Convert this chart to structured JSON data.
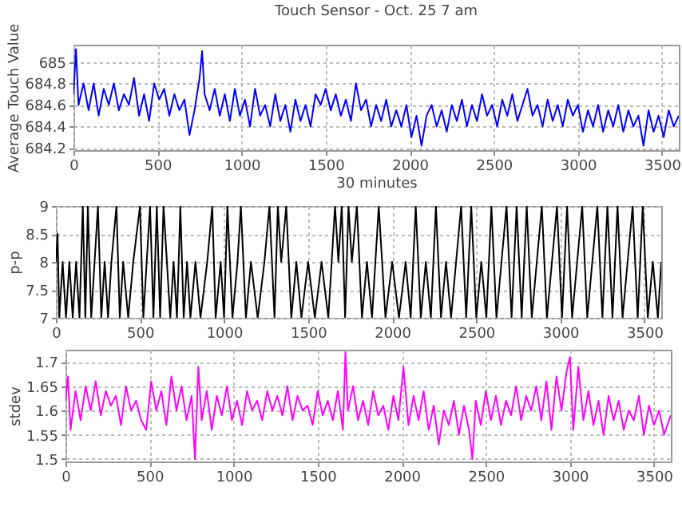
{
  "chart_data": [
    {
      "type": "line",
      "title": "Touch Sensor - Oct. 25 7 am",
      "xlabel": "30 minutes",
      "ylabel": "Average Touch Value",
      "xlim": [
        0,
        3600
      ],
      "xticks": [
        0,
        500,
        1000,
        1500,
        2000,
        2500,
        3000,
        3500
      ],
      "ylim": [
        684.18,
        685.16
      ],
      "yticks": [
        684.2,
        684.4,
        684.6,
        684.8,
        685
      ],
      "grid": true,
      "series": [
        {
          "color": "#0000ff",
          "x": [
            0,
            15,
            30,
            60,
            90,
            120,
            150,
            180,
            210,
            240,
            270,
            300,
            330,
            360,
            390,
            420,
            450,
            480,
            510,
            540,
            570,
            600,
            630,
            660,
            690,
            720,
            750,
            765,
            780,
            810,
            840,
            870,
            900,
            930,
            960,
            990,
            1020,
            1050,
            1080,
            1110,
            1140,
            1170,
            1200,
            1230,
            1260,
            1290,
            1320,
            1350,
            1380,
            1410,
            1440,
            1470,
            1500,
            1530,
            1560,
            1590,
            1620,
            1650,
            1680,
            1710,
            1740,
            1770,
            1800,
            1830,
            1860,
            1890,
            1920,
            1950,
            1980,
            2010,
            2040,
            2070,
            2100,
            2130,
            2160,
            2190,
            2220,
            2250,
            2280,
            2310,
            2340,
            2370,
            2400,
            2430,
            2460,
            2490,
            2520,
            2550,
            2580,
            2610,
            2640,
            2670,
            2700,
            2730,
            2760,
            2790,
            2820,
            2850,
            2880,
            2910,
            2940,
            2970,
            3000,
            3030,
            3060,
            3090,
            3120,
            3150,
            3180,
            3210,
            3240,
            3270,
            3300,
            3330,
            3360,
            3390,
            3420,
            3450,
            3480,
            3510,
            3540,
            3570,
            3600
          ],
          "values": [
            684.7,
            685.12,
            684.6,
            684.8,
            684.55,
            684.8,
            684.5,
            684.75,
            684.6,
            684.8,
            684.55,
            684.7,
            684.6,
            684.85,
            684.5,
            684.7,
            684.45,
            684.8,
            684.65,
            684.75,
            684.5,
            684.7,
            684.55,
            684.65,
            684.32,
            684.55,
            684.85,
            685.1,
            684.7,
            684.55,
            684.75,
            684.5,
            684.7,
            684.45,
            684.75,
            684.5,
            684.65,
            684.4,
            684.75,
            684.5,
            684.6,
            684.4,
            684.7,
            684.45,
            684.6,
            684.35,
            684.65,
            684.45,
            684.6,
            684.4,
            684.7,
            684.6,
            684.75,
            684.55,
            684.7,
            684.5,
            684.65,
            684.45,
            684.8,
            684.55,
            684.65,
            684.4,
            684.6,
            684.45,
            684.65,
            684.4,
            684.55,
            684.4,
            684.6,
            684.3,
            684.5,
            684.22,
            684.5,
            684.6,
            684.4,
            684.55,
            684.35,
            684.6,
            684.45,
            684.65,
            684.4,
            684.6,
            684.45,
            684.7,
            684.5,
            684.6,
            684.4,
            684.65,
            684.5,
            684.7,
            684.45,
            684.6,
            684.75,
            684.5,
            684.6,
            684.4,
            684.65,
            684.45,
            684.6,
            684.4,
            684.65,
            684.5,
            684.6,
            684.35,
            684.55,
            684.4,
            684.6,
            684.35,
            684.55,
            684.4,
            684.6,
            684.35,
            684.55,
            684.4,
            684.5,
            684.22,
            684.55,
            684.35,
            684.5,
            684.3,
            684.55,
            684.4,
            684.5
          ]
        }
      ]
    },
    {
      "type": "line",
      "ylabel": "p-p",
      "xlim": [
        0,
        3600
      ],
      "xticks": [
        0,
        500,
        1000,
        1500,
        2000,
        2500,
        3000,
        3500
      ],
      "ylim": [
        7,
        9
      ],
      "yticks": [
        7,
        7.5,
        8,
        8.5,
        9
      ],
      "grid": true,
      "series": [
        {
          "color": "#000000",
          "x": [
            0,
            10,
            20,
            40,
            60,
            80,
            100,
            120,
            140,
            160,
            175,
            190,
            210,
            230,
            250,
            270,
            290,
            310,
            330,
            360,
            380,
            400,
            430,
            460,
            500,
            520,
            540,
            560,
            580,
            600,
            620,
            640,
            660,
            680,
            700,
            720,
            740,
            760,
            780,
            800,
            830,
            860,
            900,
            930,
            950,
            980,
            1000,
            1020,
            1050,
            1080,
            1100,
            1130,
            1160,
            1200,
            1240,
            1270,
            1300,
            1320,
            1340,
            1370,
            1400,
            1430,
            1460,
            1500,
            1540,
            1580,
            1620,
            1660,
            1680,
            1700,
            1720,
            1740,
            1760,
            1790,
            1820,
            1850,
            1880,
            1920,
            1960,
            2000,
            2040,
            2080,
            2110,
            2140,
            2170,
            2200,
            2230,
            2260,
            2290,
            2320,
            2350,
            2380,
            2410,
            2440,
            2470,
            2500,
            2530,
            2560,
            2590,
            2620,
            2650,
            2680,
            2710,
            2740,
            2770,
            2800,
            2830,
            2860,
            2890,
            2920,
            2950,
            2980,
            3010,
            3040,
            3070,
            3100,
            3130,
            3160,
            3190,
            3220,
            3250,
            3280,
            3310,
            3340,
            3370,
            3400,
            3430,
            3460,
            3490,
            3520,
            3550,
            3580,
            3600
          ],
          "values": [
            8,
            8.5,
            7,
            8,
            7,
            8,
            7,
            8,
            7,
            9,
            7,
            9,
            7,
            8,
            9,
            7,
            8,
            7,
            8,
            9,
            7,
            8,
            7,
            8,
            9,
            7,
            8,
            9,
            7,
            9,
            7,
            9,
            8,
            7,
            8,
            7,
            9,
            7,
            8,
            7,
            8,
            7,
            8,
            9,
            7,
            8,
            7,
            9,
            7,
            8,
            9,
            7,
            8,
            7,
            8,
            9,
            7,
            9,
            8,
            9,
            7,
            8,
            7,
            8,
            7,
            8,
            7,
            9,
            8,
            9,
            7,
            9,
            8,
            9,
            7,
            8,
            7,
            9,
            7,
            8,
            7,
            8,
            7,
            9,
            7,
            8,
            7,
            9,
            7,
            8,
            7,
            8,
            9,
            7,
            9,
            7,
            8,
            7,
            9,
            7,
            8,
            9,
            7,
            9,
            7,
            9,
            7,
            8,
            9,
            7,
            8,
            9,
            7,
            9,
            7,
            8,
            9,
            7,
            8,
            9,
            7,
            9,
            7,
            9,
            7,
            8,
            9,
            7,
            9,
            7,
            8,
            7,
            8
          ]
        }
      ]
    },
    {
      "type": "line",
      "ylabel": "stdev",
      "xlim": [
        0,
        3600
      ],
      "xticks": [
        0,
        500,
        1000,
        1500,
        2000,
        2500,
        3000,
        3500
      ],
      "ylim": [
        1.495,
        1.725
      ],
      "yticks": [
        1.5,
        1.55,
        1.6,
        1.65,
        1.7
      ],
      "grid": true,
      "series": [
        {
          "color": "#ff00ff",
          "x": [
            0,
            15,
            30,
            60,
            90,
            120,
            150,
            180,
            210,
            240,
            270,
            300,
            330,
            360,
            390,
            420,
            450,
            480,
            510,
            540,
            570,
            600,
            630,
            660,
            690,
            720,
            750,
            770,
            790,
            810,
            840,
            870,
            900,
            930,
            960,
            990,
            1020,
            1050,
            1080,
            1110,
            1140,
            1170,
            1200,
            1230,
            1260,
            1290,
            1320,
            1350,
            1380,
            1410,
            1440,
            1470,
            1500,
            1530,
            1560,
            1590,
            1620,
            1650,
            1665,
            1680,
            1710,
            1740,
            1770,
            1800,
            1830,
            1860,
            1890,
            1920,
            1950,
            1980,
            2010,
            2040,
            2070,
            2100,
            2130,
            2160,
            2190,
            2220,
            2250,
            2280,
            2310,
            2340,
            2370,
            2400,
            2420,
            2440,
            2470,
            2500,
            2530,
            2560,
            2590,
            2620,
            2650,
            2680,
            2710,
            2740,
            2770,
            2800,
            2830,
            2860,
            2890,
            2920,
            2950,
            2980,
            3000,
            3020,
            3050,
            3080,
            3110,
            3140,
            3170,
            3200,
            3230,
            3260,
            3290,
            3320,
            3350,
            3380,
            3410,
            3440,
            3470,
            3500,
            3530,
            3560,
            3600
          ],
          "values": [
            1.62,
            1.67,
            1.56,
            1.64,
            1.58,
            1.65,
            1.6,
            1.66,
            1.59,
            1.64,
            1.61,
            1.63,
            1.57,
            1.65,
            1.6,
            1.62,
            1.58,
            1.56,
            1.66,
            1.6,
            1.64,
            1.57,
            1.67,
            1.6,
            1.65,
            1.58,
            1.63,
            1.5,
            1.69,
            1.58,
            1.64,
            1.56,
            1.63,
            1.59,
            1.65,
            1.58,
            1.62,
            1.57,
            1.64,
            1.6,
            1.62,
            1.58,
            1.64,
            1.6,
            1.63,
            1.59,
            1.65,
            1.58,
            1.63,
            1.6,
            1.61,
            1.57,
            1.64,
            1.59,
            1.62,
            1.58,
            1.64,
            1.56,
            1.72,
            1.6,
            1.65,
            1.58,
            1.62,
            1.57,
            1.64,
            1.59,
            1.61,
            1.56,
            1.63,
            1.58,
            1.69,
            1.57,
            1.63,
            1.58,
            1.64,
            1.56,
            1.61,
            1.53,
            1.6,
            1.57,
            1.62,
            1.55,
            1.61,
            1.56,
            1.5,
            1.62,
            1.57,
            1.64,
            1.58,
            1.63,
            1.57,
            1.62,
            1.59,
            1.65,
            1.58,
            1.63,
            1.6,
            1.65,
            1.58,
            1.66,
            1.56,
            1.67,
            1.6,
            1.68,
            1.71,
            1.56,
            1.69,
            1.58,
            1.64,
            1.57,
            1.62,
            1.55,
            1.63,
            1.58,
            1.62,
            1.56,
            1.6,
            1.58,
            1.63,
            1.55,
            1.61,
            1.57,
            1.6,
            1.55,
            1.59
          ]
        }
      ]
    }
  ]
}
